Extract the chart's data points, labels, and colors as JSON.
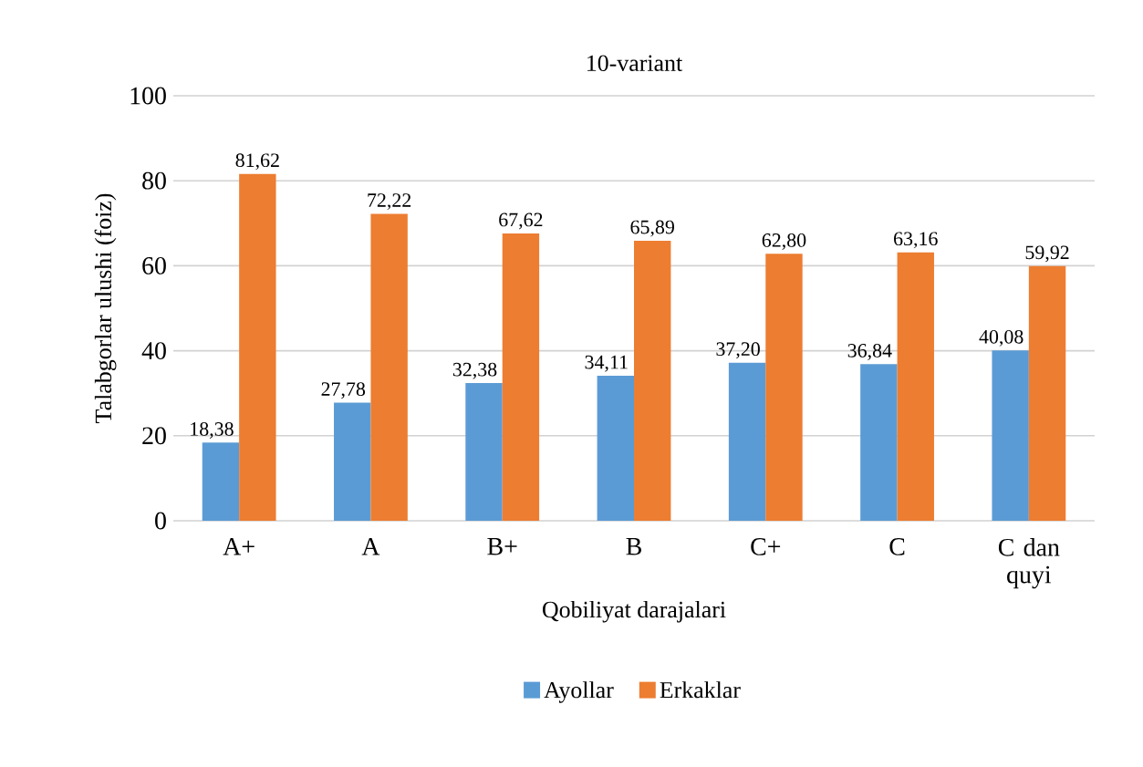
{
  "chart_data": {
    "type": "bar",
    "title": "10-variant",
    "xlabel": "Qobiliyat darajalari",
    "ylabel": "Talabgorlar ulushi (foiz)",
    "categories": [
      "A+",
      "A",
      "B+",
      "B",
      "C+",
      "C",
      "C dan quyi"
    ],
    "series": [
      {
        "name": "Ayollar",
        "color": "#5b9bd5",
        "values": [
          18.38,
          27.78,
          32.38,
          34.11,
          37.2,
          36.84,
          40.08
        ],
        "value_labels": [
          "18,38",
          "27,78",
          "32,38",
          "34,11",
          "37,20",
          "36,84",
          "40,08"
        ]
      },
      {
        "name": "Erkaklar",
        "color": "#ed7d31",
        "values": [
          81.62,
          72.22,
          67.62,
          65.89,
          62.8,
          63.16,
          59.92
        ],
        "value_labels": [
          "81,62",
          "72,22",
          "67,62",
          "65,89",
          "62,80",
          "63,16",
          "59,92"
        ]
      }
    ],
    "ylim": [
      0,
      100
    ],
    "yticks": [
      0,
      20,
      40,
      60,
      80,
      100
    ],
    "grid": "y",
    "legend": "bottom"
  }
}
